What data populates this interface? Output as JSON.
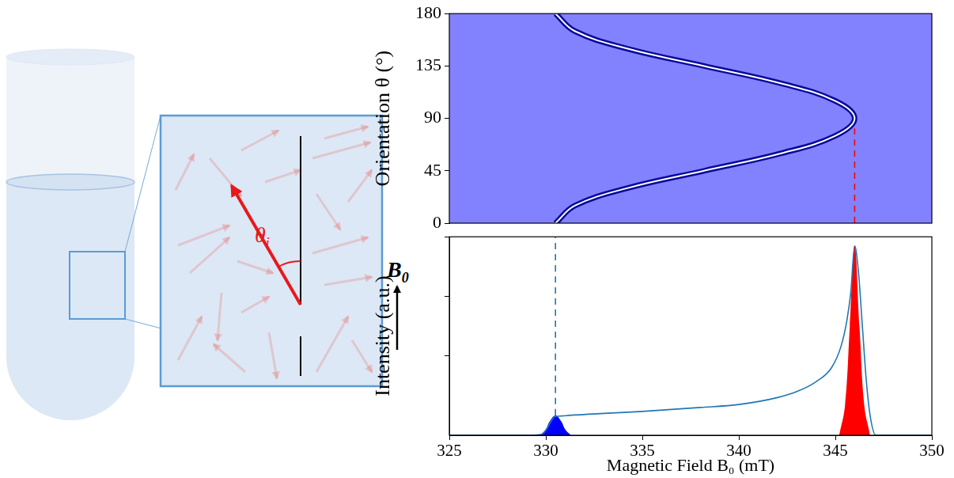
{
  "diagram": {
    "vector_label": {
      "symbol": "θ",
      "subscript": "i"
    },
    "field_label": {
      "symbol": "B",
      "subscript": "0"
    }
  },
  "chart_data": [
    {
      "type": "line",
      "ylabel": "Orientation θ (°)",
      "xlim": [
        325,
        350
      ],
      "ylim": [
        0,
        180
      ],
      "yticks": [
        0,
        45,
        90,
        135,
        180
      ],
      "grid": false,
      "tick_labels": "y",
      "series": [
        {
          "x": [
            330.5,
            331.5,
            334.2,
            338.2,
            342.2,
            345.0,
            346.0,
            345.0,
            342.2,
            338.2,
            334.2,
            331.5,
            330.5
          ],
          "values": [
            0,
            15,
            30,
            45,
            60,
            75,
            90,
            105,
            120,
            135,
            150,
            165,
            180
          ],
          "color": "#0a0a9a",
          "line_style": "double"
        },
        {
          "x": [
            346,
            346
          ],
          "values": [
            0,
            90
          ],
          "color": "#ff0000",
          "line_style": "dashed"
        }
      ]
    },
    {
      "type": "line",
      "xlabel": "Magnetic Field B₀ (mT)",
      "ylabel": "Intensity (a.u.)",
      "xlim": [
        325,
        350
      ],
      "xticks": [
        325,
        330,
        335,
        340,
        345,
        350
      ],
      "ylim": [
        0,
        1
      ],
      "yticks": [
        0.4,
        0.7,
        1
      ],
      "grid": false,
      "tick_labels": "x",
      "series": [
        {
          "x": [
            325,
            329,
            329.8,
            330.1,
            330.3,
            330.5,
            330.8,
            331.2,
            333,
            335,
            338,
            340,
            342,
            343,
            344,
            344.8,
            345.3,
            345.6,
            345.8,
            346,
            346.2,
            346.4,
            346.6,
            346.8,
            347.1,
            348,
            350
          ],
          "values": [
            0,
            0,
            0.005,
            0.04,
            0.075,
            0.095,
            0.097,
            0.1,
            0.11,
            0.12,
            0.14,
            0.155,
            0.19,
            0.22,
            0.27,
            0.34,
            0.45,
            0.58,
            0.72,
            0.955,
            0.82,
            0.55,
            0.28,
            0.1,
            0,
            0,
            0
          ],
          "color": "#1f77b4",
          "line_style": "solid"
        },
        {
          "x": [
            329.7,
            330,
            330.2,
            330.5,
            330.8,
            331,
            331.3
          ],
          "values": [
            0,
            0.03,
            0.07,
            0.1,
            0.07,
            0.03,
            0
          ],
          "color": "#0000ff",
          "type": "area"
        },
        {
          "x": [
            345.2,
            345.5,
            345.75,
            346,
            346.25,
            346.5,
            346.8
          ],
          "values": [
            0,
            0.15,
            0.55,
            0.955,
            0.55,
            0.15,
            0
          ],
          "color": "#ff0000",
          "type": "area"
        },
        {
          "x": [
            330.5,
            330.5
          ],
          "values": [
            0.1,
            1
          ],
          "color": "#1f77b4",
          "line_style": "dashed"
        }
      ]
    }
  ]
}
